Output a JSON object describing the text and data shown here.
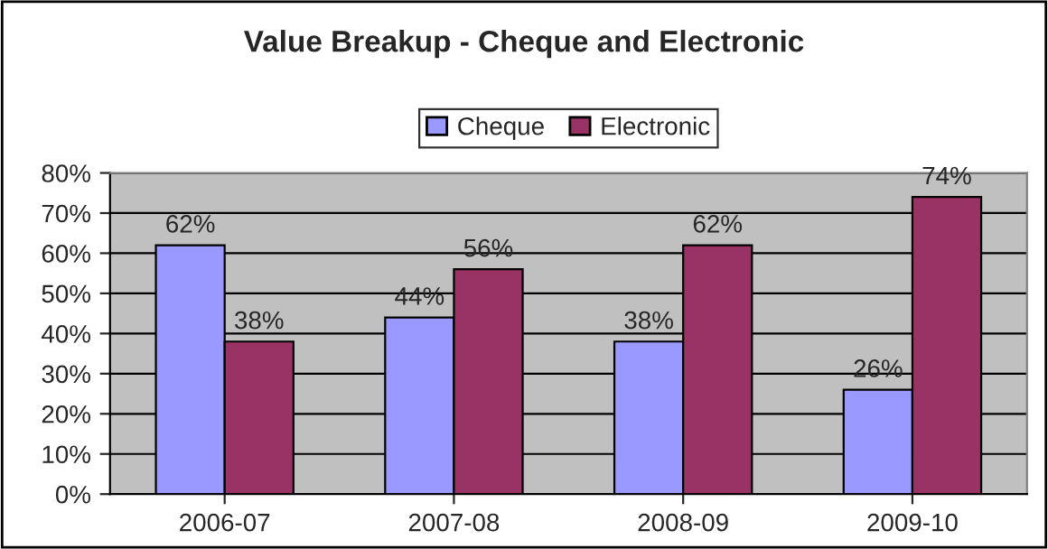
{
  "chart_data": {
    "type": "bar",
    "title": "Value Breakup - Cheque and Electronic",
    "categories": [
      "2006-07",
      "2007-08",
      "2008-09",
      "2009-10"
    ],
    "series": [
      {
        "name": "Cheque",
        "color": "#9999ff",
        "values": [
          62,
          44,
          38,
          26
        ],
        "value_labels": [
          "62%",
          "44%",
          "38%",
          "26%"
        ]
      },
      {
        "name": "Electronic",
        "color": "#993366",
        "values": [
          38,
          56,
          62,
          74
        ],
        "value_labels": [
          "38%",
          "56%",
          "62%",
          "74%"
        ]
      }
    ],
    "ylim": [
      0,
      80
    ],
    "yticks": [
      {
        "value": 0,
        "label": "0%"
      },
      {
        "value": 10,
        "label": "10%"
      },
      {
        "value": 20,
        "label": "20%"
      },
      {
        "value": 30,
        "label": "30%"
      },
      {
        "value": 40,
        "label": "40%"
      },
      {
        "value": 50,
        "label": "50%"
      },
      {
        "value": 60,
        "label": "60%"
      },
      {
        "value": 70,
        "label": "70%"
      },
      {
        "value": 80,
        "label": "80%"
      }
    ],
    "grid": "y",
    "legend": "top"
  }
}
